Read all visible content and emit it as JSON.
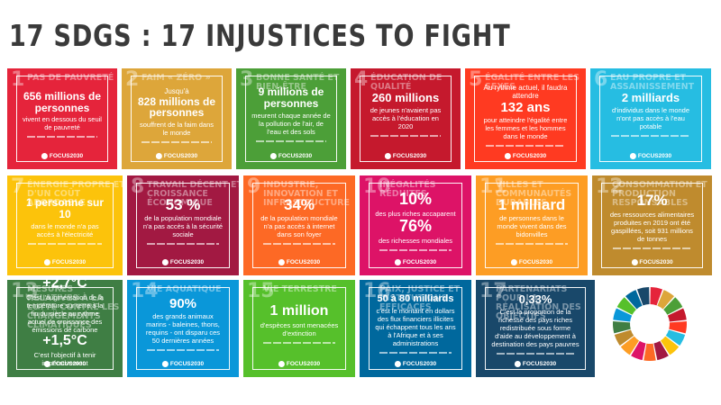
{
  "title": "17 SDGS : 17 INJUSTICES TO FIGHT",
  "logo_text": "FOCUS2030",
  "tiles": [
    {
      "num": "1",
      "name": "PAS DE PAUVRETÉ",
      "color": "#e5243b",
      "big": "656 millions de personnes",
      "text": "vivent en dessous du seuil de pauvreté"
    },
    {
      "num": "2",
      "name": "FAIM « ZÉRO »",
      "color": "#dda63a",
      "pre": "Jusqu'à",
      "big": "828 millions de personnes",
      "text": "souffrent de la faim dans le monde"
    },
    {
      "num": "3",
      "name": "BONNE SANTÉ ET BIEN-ÊTRE",
      "color": "#4c9f38",
      "big": "9 millions de personnes",
      "text": "meurent chaque année de la pollution de l'air, de l'eau et des sols"
    },
    {
      "num": "4",
      "name": "ÉDUCATION DE QUALITÉ",
      "color": "#c5192d",
      "big": "260 millions",
      "text": "de jeunes n'avaient pas accès à l'éducation en 2020"
    },
    {
      "num": "5",
      "name": "ÉGALITÉ ENTRE LES SEXES",
      "color": "#ff3a21",
      "pre": "Au rythme actuel, il faudra attendre",
      "big": "132 ans",
      "text": "pour atteindre l'égalité entre les femmes et les hommes dans le monde"
    },
    {
      "num": "6",
      "name": "EAU PROPRE ET ASSAINISSEMENT",
      "color": "#26bde2",
      "big": "2 milliards",
      "text": "d'individus dans le monde n'ont pas accès à l'eau potable"
    },
    {
      "num": "7",
      "name": "ÉNERGIE PROPRE ET D'UN COÛT ABORDABLE",
      "color": "#fcc30b",
      "big": "1 personne sur 10",
      "text": "dans le monde n'a pas accès à l'électricité"
    },
    {
      "num": "8",
      "name": "TRAVAIL DÉCENT ET CROISSANCE ÉCONOMIQUE",
      "color": "#a21942",
      "big": "53 %",
      "text": "de la population mondiale n'a pas accès à la sécurité sociale"
    },
    {
      "num": "9",
      "name": "INDUSTRIE, INNOVATION ET INFRASTRUCTURE",
      "color": "#fd6925",
      "big": "34%",
      "text": "de la population mondiale n'a pas accès à internet dans son foyer"
    },
    {
      "num": "10",
      "name": "INÉGALITÉS RÉDUITES",
      "color": "#dd1367",
      "big": "10%",
      "text": "des plus riches accaparent",
      "big2": "76%",
      "text2": "des richesses mondiales"
    },
    {
      "num": "11",
      "name": "VILLES ET COMMUNAUTÉS DURABLES",
      "color": "#fd9d24",
      "big": "1 milliard",
      "text": "de personnes dans le monde vivent dans des bidonvilles"
    },
    {
      "num": "12",
      "name": "CONSOMMATION ET PRODUCTION RESPONSABLES",
      "color": "#bf8b2e",
      "big": "17%",
      "text": "des ressources alimentaires produites en 2019 ont été gaspillées, soit 931 millions de tonnes"
    },
    {
      "num": "13",
      "name": "MESURES RELATIVES À LA LUTTE CONTRE LES CHANGEMENTS CLIMATIQUES",
      "color": "#3f7e44",
      "big": "+2,7°C",
      "text": "C'est l'augmentation de la température sur terre à la fin du siècle au rythme actuel de croissance des émissions de carbone",
      "big2": "+1,5°C",
      "text2": "C'est l'objectif à tenir impérativement"
    },
    {
      "num": "14",
      "name": "VIE AQUATIQUE",
      "color": "#0a97d9",
      "big": "90%",
      "text": "des grands animaux marins - baleines, thons, requins - ont disparu ces 50 dernières années"
    },
    {
      "num": "15",
      "name": "VIE TERRESTRE",
      "color": "#56c02b",
      "big": "1 million",
      "text": "d'espèces sont menacées d'extinction"
    },
    {
      "num": "16",
      "name": "PAIX, JUSTICE ET INSTITUTIONS EFFICACES",
      "color": "#00689d",
      "big": "50 à 80 milliards",
      "text": "c'est le montant en dollars des flux financiers illicites qui échappent tous les ans à l'Afrique et à ses administrations"
    },
    {
      "num": "17",
      "name": "PARTENARIATS POUR LA RÉALISATION DES OBJECTIFS",
      "color": "#19486a",
      "big": "0,33%",
      "text": "C'est la proportion de la richesse des pays riches redistribuée sous forme d'aide au développement à destination des pays pauvres"
    }
  ],
  "wheel_colors": [
    "#e5243b",
    "#dda63a",
    "#4c9f38",
    "#c5192d",
    "#ff3a21",
    "#26bde2",
    "#fcc30b",
    "#a21942",
    "#fd6925",
    "#dd1367",
    "#fd9d24",
    "#bf8b2e",
    "#3f7e44",
    "#0a97d9",
    "#56c02b",
    "#00689d",
    "#19486a"
  ]
}
